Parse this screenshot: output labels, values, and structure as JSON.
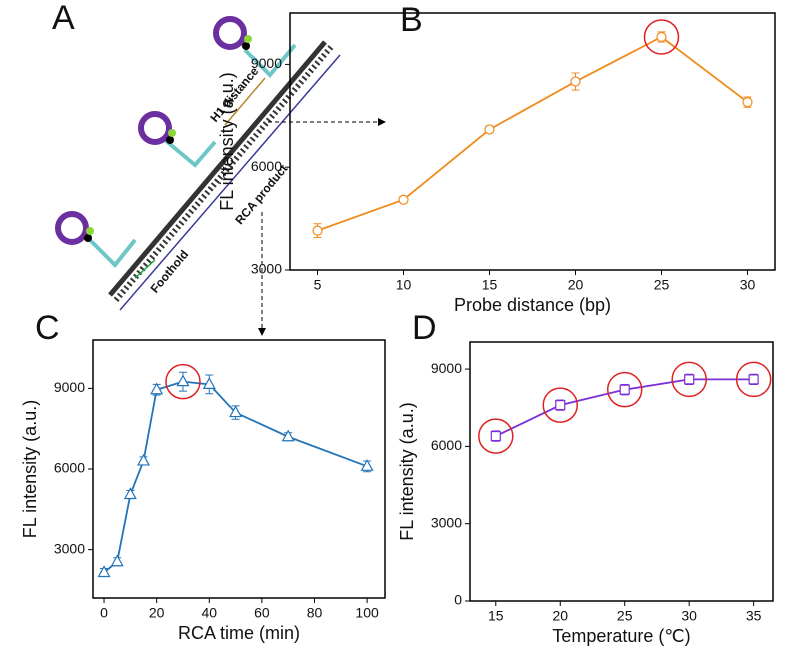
{
  "diagram": {
    "label": "A",
    "h1": "H1 distance",
    "rca": "RCA product",
    "foothold": "Foothold"
  },
  "chart_data": [
    {
      "type": "line",
      "label": "B",
      "xlabel": "Probe distance (bp)",
      "ylabel": "FL intensity (a.u.)",
      "x": [
        5,
        10,
        15,
        20,
        25,
        30
      ],
      "values": [
        4150,
        5050,
        7100,
        8500,
        9800,
        7900
      ],
      "errors": [
        200,
        100,
        100,
        250,
        150,
        150
      ],
      "color": "#f08c1e",
      "marker": "circle",
      "highlight": [
        4
      ],
      "xlim": [
        3.4,
        31.6
      ],
      "ylim": [
        3000,
        10500
      ],
      "xticks": [
        5,
        10,
        15,
        20,
        25,
        30
      ],
      "yticks": [
        3000,
        6000,
        9000
      ]
    },
    {
      "type": "line",
      "label": "C",
      "xlabel": "RCA time (min)",
      "ylabel": "FL intensity (a.u.)",
      "x": [
        0,
        5,
        10,
        15,
        20,
        30,
        40,
        50,
        70,
        100
      ],
      "values": [
        2150,
        2550,
        5050,
        6300,
        8950,
        9250,
        9150,
        8100,
        7200,
        6100
      ],
      "errors": [
        150,
        150,
        150,
        150,
        200,
        350,
        350,
        250,
        150,
        200
      ],
      "color": "#2474b8",
      "marker": "triangle",
      "highlight": [
        5
      ],
      "xlim": [
        -4.2,
        106.8
      ],
      "ylim": [
        1200,
        10800
      ],
      "xticks": [
        0,
        20,
        40,
        60,
        80,
        100
      ],
      "yticks": [
        3000,
        6000,
        9000
      ]
    },
    {
      "type": "line",
      "label": "D",
      "xlabel": "Temperature (℃)",
      "ylabel": "FL intensity (a.u.)",
      "x": [
        15,
        20,
        25,
        30,
        35
      ],
      "values": [
        6400,
        7600,
        8200,
        8600,
        8600
      ],
      "errors": [
        200,
        200,
        200,
        200,
        200
      ],
      "color": "#7b2fd6",
      "marker": "square",
      "highlight": [
        0,
        1,
        2,
        3,
        4
      ],
      "xlim": [
        13,
        36.5
      ],
      "ylim": [
        0,
        10050
      ],
      "xticks": [
        15,
        20,
        25,
        30,
        35
      ],
      "yticks": [
        0,
        3000,
        6000,
        9000
      ]
    }
  ]
}
